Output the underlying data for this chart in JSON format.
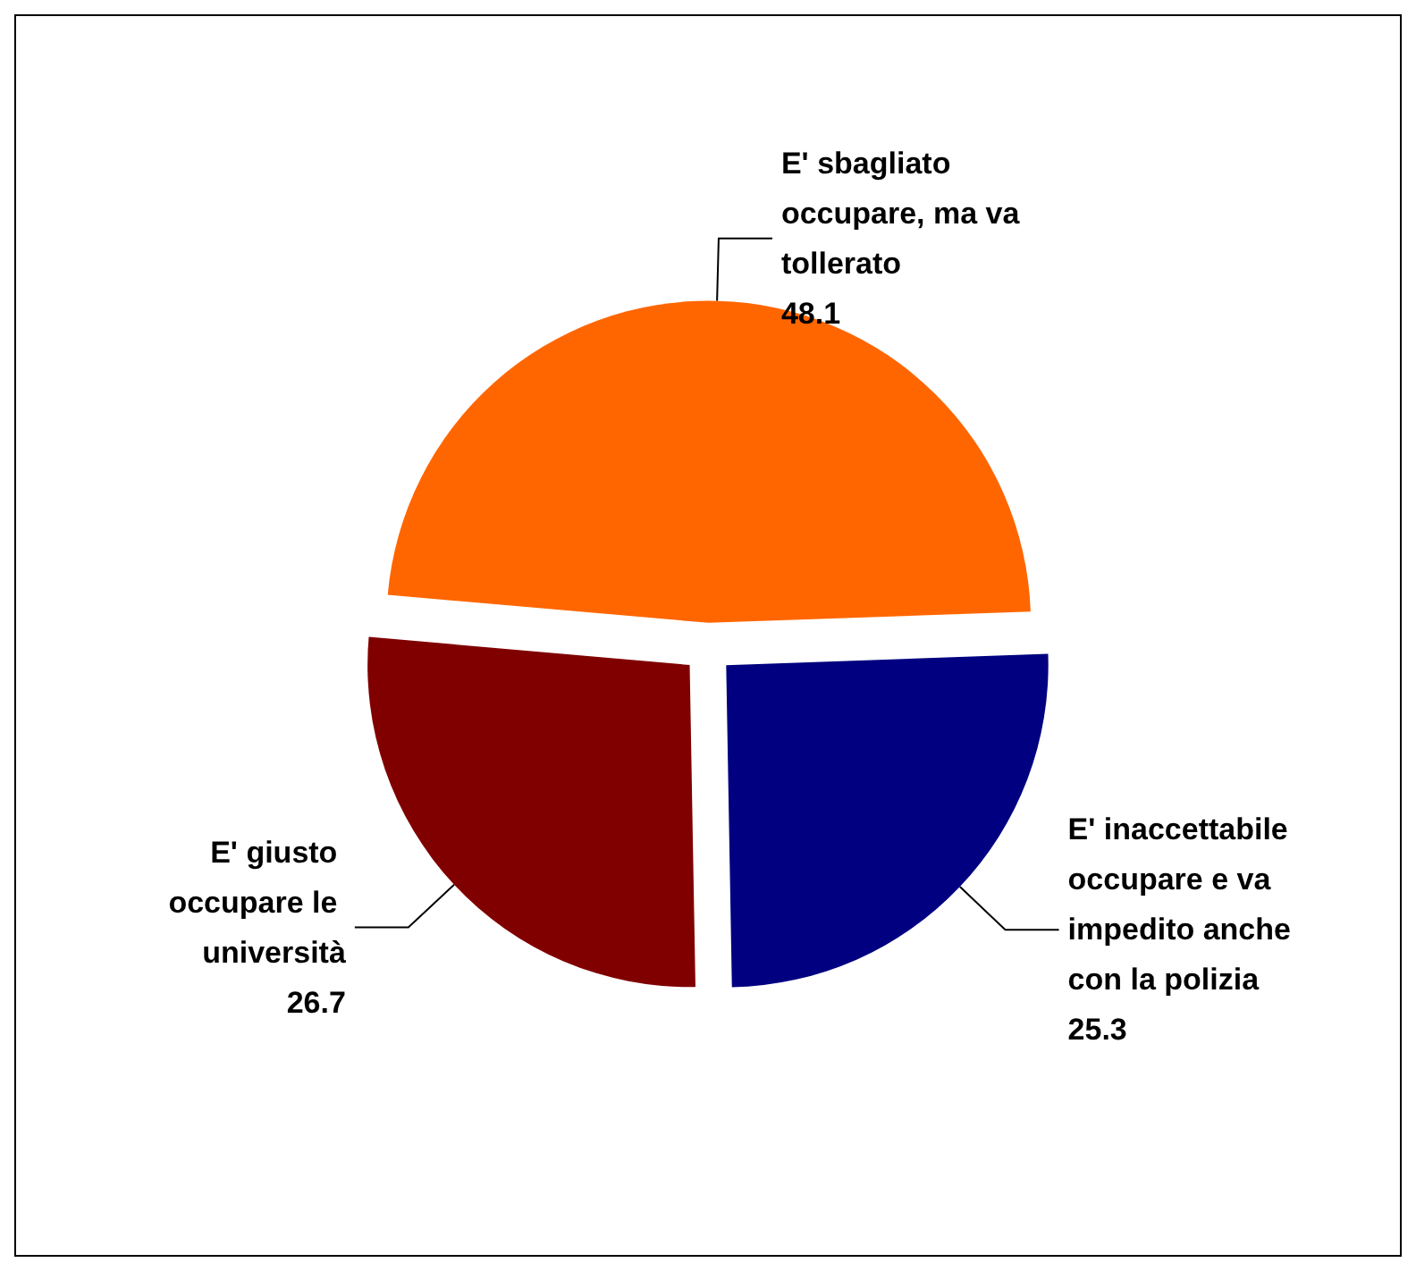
{
  "chart_data": {
    "type": "pie",
    "categories": [
      "E' sbagliato occupare, ma va tollerato",
      "E' inaccettabile occupare e va impedito anche con la polizia",
      "E' giusto occupare le università"
    ],
    "values": [
      48.1,
      25.3,
      26.7
    ],
    "colors": [
      "#ff6600",
      "#000080",
      "#800000"
    ],
    "data_labels": true
  }
}
